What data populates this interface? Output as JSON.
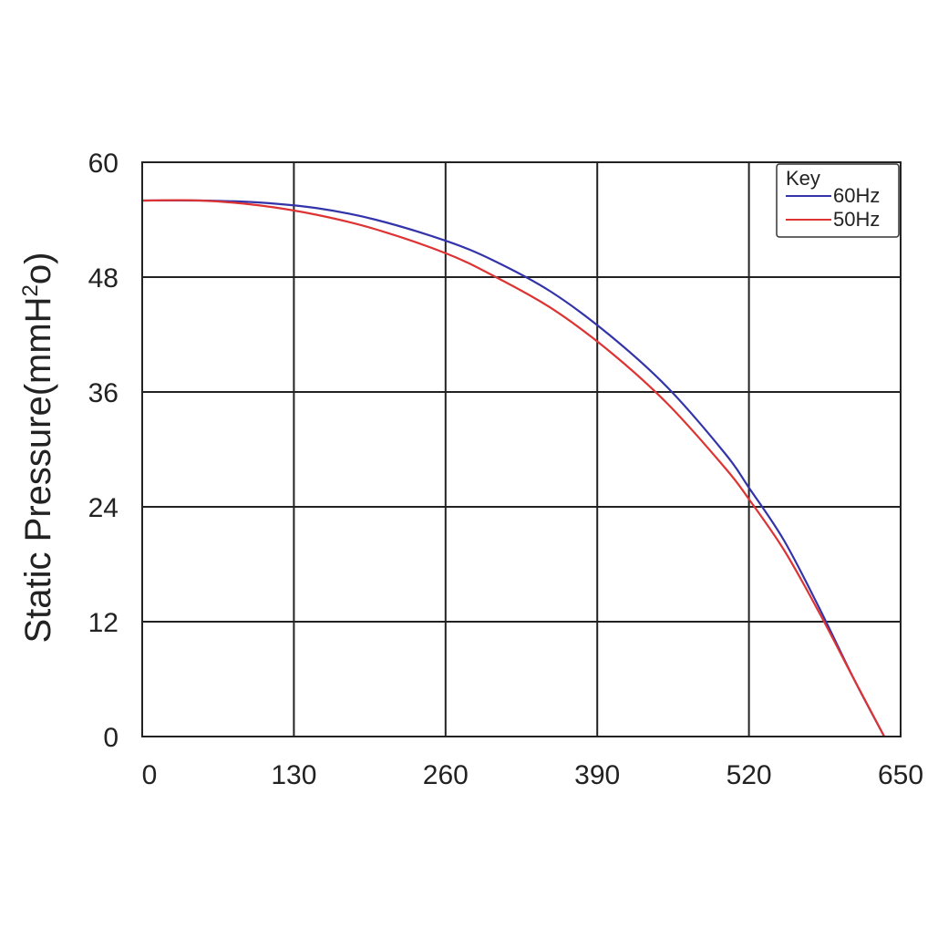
{
  "chart_data": {
    "type": "line",
    "title": "",
    "xlabel": "",
    "ylabel": {
      "prefix": "Static Pressure(mmH",
      "sup": "2",
      "suffix": "o)"
    },
    "xlim": [
      0,
      650
    ],
    "ylim": [
      0,
      60
    ],
    "x_ticks": [
      "0",
      "130",
      "260",
      "390",
      "520",
      "650"
    ],
    "y_ticks": [
      "0",
      "12",
      "24",
      "36",
      "48",
      "60"
    ],
    "grid": true,
    "legend": {
      "title": "Key",
      "position": "top-right"
    },
    "series": [
      {
        "name": "60Hz",
        "color": "#3333aa",
        "x": [
          0,
          50,
          100,
          150,
          200,
          260,
          300,
          350,
          400,
          450,
          500,
          520,
          550,
          580,
          610,
          636
        ],
        "y": [
          56,
          56,
          55.8,
          55.2,
          54,
          51.8,
          49.8,
          46.5,
          42,
          36.5,
          29.5,
          26,
          20.5,
          13.5,
          6,
          0
        ]
      },
      {
        "name": "50Hz",
        "color": "#dd3333",
        "x": [
          0,
          50,
          100,
          150,
          200,
          260,
          300,
          350,
          400,
          450,
          500,
          520,
          550,
          580,
          610,
          636
        ],
        "y": [
          56,
          56,
          55.5,
          54.5,
          53,
          50.5,
          48.2,
          44.8,
          40.3,
          34.8,
          28,
          24.8,
          19.5,
          13,
          6,
          0
        ]
      }
    ]
  }
}
